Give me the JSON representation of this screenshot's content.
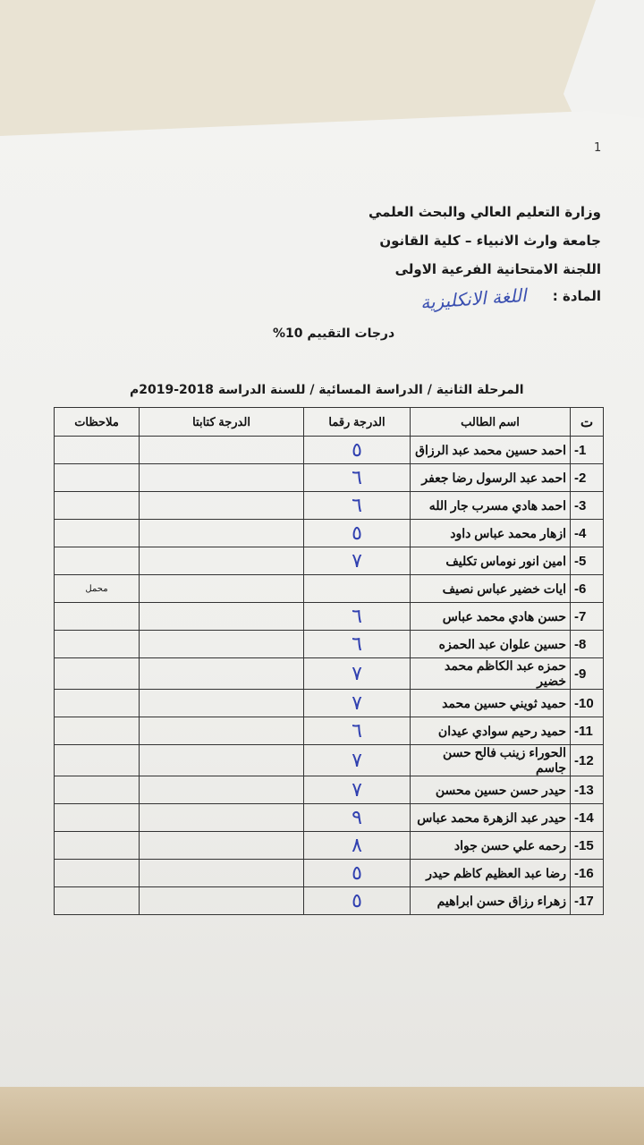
{
  "page_number": "1",
  "header": {
    "ministry": "وزارة التعليم العالي والبحث العلمي",
    "university": "جامعة وارث الانبياء – كلية القانون",
    "committee": "اللجنة الامتحانية الفرعية الاولى",
    "subject_label": "المادة :",
    "subject_handwritten": "اللغة الانكليزية"
  },
  "title": "درجات التقييم 10%",
  "stage_line": "المرحلة الثانية /  الدراسة المسائية  / للسنة الدراسة 2018-2019م",
  "table": {
    "headers": [
      "ت",
      "اسم الطالب",
      "الدرجة رقما",
      "الدرجة كتابتا",
      "ملاحظات"
    ],
    "rows": [
      {
        "n": "1-",
        "name": "احمد حسين محمد عبد الرزاق",
        "grade": "٥",
        "words": "",
        "note": ""
      },
      {
        "n": "2-",
        "name": "احمد عبد الرسول رضا جعفر",
        "grade": "٦",
        "words": "",
        "note": ""
      },
      {
        "n": "3-",
        "name": "احمد هادي مسرب جار الله",
        "grade": "٦",
        "words": "",
        "note": ""
      },
      {
        "n": "4-",
        "name": "ازهار محمد عباس داود",
        "grade": "٥",
        "words": "",
        "note": ""
      },
      {
        "n": "5-",
        "name": "امين انور نوماس تكليف",
        "grade": "٧",
        "words": "",
        "note": ""
      },
      {
        "n": "6-",
        "name": "ايات خضير عباس نصيف",
        "grade": "",
        "words": "",
        "note": "محمل"
      },
      {
        "n": "7-",
        "name": "حسن هادي محمد عباس",
        "grade": "٦",
        "words": "",
        "note": ""
      },
      {
        "n": "8-",
        "name": "حسين علوان عبد الحمزه",
        "grade": "٦",
        "words": "",
        "note": ""
      },
      {
        "n": "9-",
        "name": "حمزه عبد الكاظم محمد خضير",
        "grade": "٧",
        "words": "",
        "note": ""
      },
      {
        "n": "10-",
        "name": "حميد ثويني حسين محمد",
        "grade": "٧",
        "words": "",
        "note": ""
      },
      {
        "n": "11-",
        "name": "حميد رحيم سوادي عيدان",
        "grade": "٦",
        "words": "",
        "note": ""
      },
      {
        "n": "12-",
        "name": "الحوراء زينب فالح حسن جاسم",
        "grade": "٧",
        "words": "",
        "note": ""
      },
      {
        "n": "13-",
        "name": "حيدر حسن حسين محسن",
        "grade": "٧",
        "words": "",
        "note": ""
      },
      {
        "n": "14-",
        "name": "حيدر عبد الزهرة محمد عباس",
        "grade": "٩",
        "words": "",
        "note": ""
      },
      {
        "n": "15-",
        "name": "رحمه علي حسن جواد",
        "grade": "٨",
        "words": "",
        "note": ""
      },
      {
        "n": "16-",
        "name": "رضا عبد العظيم كاظم حيدر",
        "grade": "٥",
        "words": "",
        "note": ""
      },
      {
        "n": "17-",
        "name": "زهراء رزاق حسن ابراهيم",
        "grade": "٥",
        "words": "",
        "note": ""
      }
    ]
  }
}
